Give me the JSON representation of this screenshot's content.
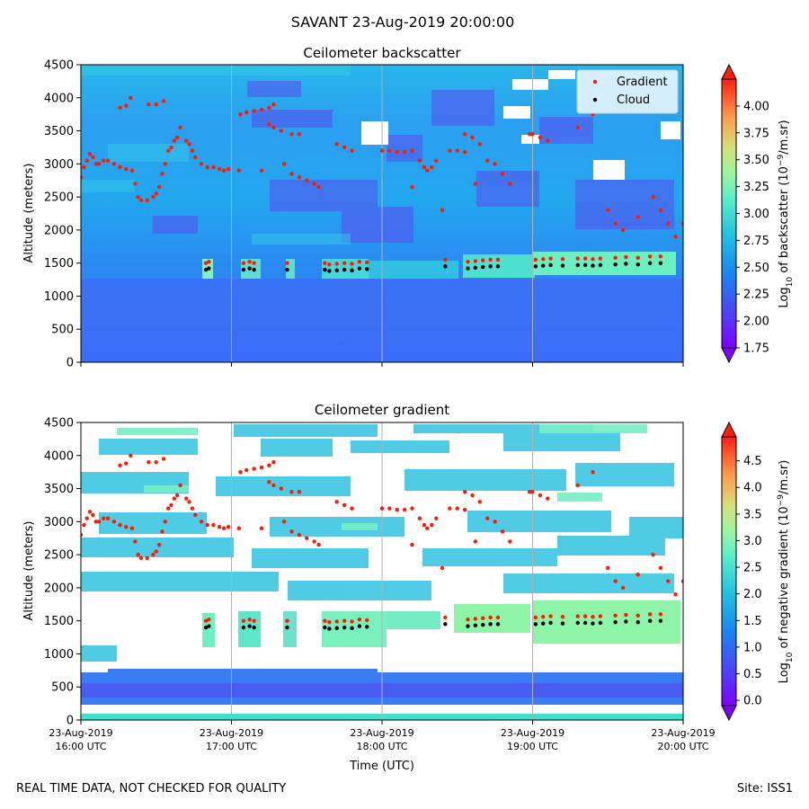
{
  "suptitle": "SAVANT 23-Aug-2019 20:00:00",
  "footer_left": "REAL TIME DATA, NOT CHECKED FOR QUALITY",
  "footer_right": "Site: ISS1",
  "chart_data": [
    {
      "type": "heatmap",
      "title": "Ceilometer backscatter",
      "ylabel": "Altitude (meters)",
      "xlabel": "",
      "ylim": [
        0,
        4500
      ],
      "yticks": [
        0,
        500,
        1000,
        1500,
        2000,
        2500,
        3000,
        3500,
        4000,
        4500
      ],
      "xlim": [
        "2019-08-23 16:00",
        "2019-08-23 20:00"
      ],
      "xticks_hours": [
        16,
        17,
        18,
        19,
        20
      ],
      "colorbar": {
        "label_prefix": "Log",
        "label_sub": "10",
        "label_mid": " of backscatter (10",
        "label_sup": "−9",
        "label_suffix": "/m.sr)",
        "min": 1.75,
        "max": 4.25,
        "ticks": [
          "1.75",
          "2.00",
          "2.25",
          "2.50",
          "2.75",
          "3.00",
          "3.25",
          "3.50",
          "3.75",
          "4.00"
        ]
      },
      "legend": {
        "position": "top-right",
        "entries": [
          "Gradient",
          "Cloud"
        ]
      }
    },
    {
      "type": "heatmap",
      "title": "Ceilometer gradient",
      "ylabel": "Altitude (meters)",
      "xlabel": "Time (UTC)",
      "ylim": [
        0,
        4500
      ],
      "yticks": [
        0,
        500,
        1000,
        1500,
        2000,
        2500,
        3000,
        3500,
        4000,
        4500
      ],
      "xlim": [
        "2019-08-23 16:00",
        "2019-08-23 20:00"
      ],
      "xticks_hours": [
        16,
        17,
        18,
        19,
        20
      ],
      "xtick_labels": [
        [
          "23-Aug-2019",
          "16:00 UTC"
        ],
        [
          "23-Aug-2019",
          "17:00 UTC"
        ],
        [
          "23-Aug-2019",
          "18:00 UTC"
        ],
        [
          "23-Aug-2019",
          "19:00 UTC"
        ],
        [
          "23-Aug-2019",
          "20:00 UTC"
        ]
      ],
      "colorbar": {
        "label_prefix": "Log",
        "label_sub": "10",
        "label_mid": " of negative gradient (10",
        "label_sup": "−9",
        "label_suffix": "/m.sr)",
        "min": -0.1,
        "max": 4.95,
        "ticks": [
          "0.0",
          "0.5",
          "1.0",
          "1.5",
          "2.0",
          "2.5",
          "3.0",
          "3.5",
          "4.0",
          "4.5"
        ]
      }
    }
  ],
  "series_gradient_points": [
    [
      16.0,
      2800
    ],
    [
      16.02,
      2950
    ],
    [
      16.04,
      3050
    ],
    [
      16.06,
      3150
    ],
    [
      16.08,
      3100
    ],
    [
      16.1,
      3000
    ],
    [
      16.12,
      3000
    ],
    [
      16.15,
      3050
    ],
    [
      16.18,
      3050
    ],
    [
      16.22,
      3000
    ],
    [
      16.26,
      2950
    ],
    [
      16.3,
      2920
    ],
    [
      16.34,
      2900
    ],
    [
      16.36,
      2700
    ],
    [
      16.38,
      2500
    ],
    [
      16.4,
      2450
    ],
    [
      16.44,
      2450
    ],
    [
      16.48,
      2500
    ],
    [
      16.5,
      2550
    ],
    [
      16.52,
      2650
    ],
    [
      16.54,
      2850
    ],
    [
      16.56,
      3000
    ],
    [
      16.58,
      3200
    ],
    [
      16.6,
      3250
    ],
    [
      16.62,
      3350
    ],
    [
      16.64,
      3400
    ],
    [
      16.66,
      3550
    ],
    [
      16.7,
      3350
    ],
    [
      16.72,
      3300
    ],
    [
      16.74,
      3200
    ],
    [
      16.76,
      3100
    ],
    [
      16.8,
      3000
    ],
    [
      16.84,
      2950
    ],
    [
      16.88,
      2950
    ],
    [
      16.92,
      2920
    ],
    [
      16.95,
      2900
    ],
    [
      16.26,
      3850
    ],
    [
      16.3,
      3880
    ],
    [
      16.33,
      4000
    ],
    [
      16.45,
      3900
    ],
    [
      16.5,
      3900
    ],
    [
      16.55,
      3950
    ],
    [
      17.06,
      3750
    ],
    [
      17.1,
      3780
    ],
    [
      17.15,
      3800
    ],
    [
      17.2,
      3820
    ],
    [
      17.25,
      3850
    ],
    [
      17.28,
      3900
    ],
    [
      17.25,
      3600
    ],
    [
      17.28,
      3550
    ],
    [
      17.33,
      3500
    ],
    [
      17.4,
      3450
    ],
    [
      17.45,
      3450
    ],
    [
      17.35,
      3000
    ],
    [
      17.4,
      2850
    ],
    [
      17.45,
      2800
    ],
    [
      17.5,
      2750
    ],
    [
      17.55,
      2700
    ],
    [
      17.58,
      2650
    ],
    [
      17.7,
      3300
    ],
    [
      17.75,
      3250
    ],
    [
      17.8,
      3200
    ],
    [
      18.0,
      3200
    ],
    [
      18.05,
      3200
    ],
    [
      18.1,
      3180
    ],
    [
      18.15,
      3180
    ],
    [
      18.2,
      3200
    ],
    [
      18.25,
      3050
    ],
    [
      18.28,
      2950
    ],
    [
      18.3,
      2900
    ],
    [
      18.33,
      2950
    ],
    [
      18.36,
      3050
    ],
    [
      18.45,
      3200
    ],
    [
      18.5,
      3200
    ],
    [
      18.55,
      3180
    ],
    [
      18.55,
      3450
    ],
    [
      18.6,
      3400
    ],
    [
      18.65,
      3300
    ],
    [
      18.7,
      3050
    ],
    [
      18.75,
      3000
    ],
    [
      18.8,
      2850
    ],
    [
      18.85,
      2700
    ],
    [
      18.98,
      3450
    ],
    [
      19.0,
      3450
    ],
    [
      19.05,
      3400
    ],
    [
      19.1,
      3350
    ],
    [
      19.5,
      2300
    ],
    [
      19.55,
      2100
    ],
    [
      19.6,
      2000
    ],
    [
      19.7,
      2200
    ],
    [
      19.8,
      2500
    ],
    [
      19.85,
      2300
    ],
    [
      19.9,
      2100
    ],
    [
      19.95,
      1900
    ],
    [
      20.0,
      2100
    ],
    [
      18.2,
      2650
    ],
    [
      18.4,
      2300
    ],
    [
      18.62,
      2700
    ],
    [
      19.3,
      3550
    ],
    [
      19.4,
      3750
    ],
    [
      17.2,
      2900
    ],
    [
      17.05,
      2900
    ],
    [
      16.98,
      2920
    ]
  ],
  "series_cloud_points": [
    [
      16.83,
      1400
    ],
    [
      16.85,
      1420
    ],
    [
      17.08,
      1400
    ],
    [
      17.12,
      1420
    ],
    [
      17.15,
      1400
    ],
    [
      17.37,
      1400
    ],
    [
      17.62,
      1400
    ],
    [
      17.65,
      1380
    ],
    [
      17.7,
      1390
    ],
    [
      17.75,
      1400
    ],
    [
      17.8,
      1390
    ],
    [
      17.85,
      1420
    ],
    [
      17.9,
      1410
    ],
    [
      18.42,
      1450
    ],
    [
      18.57,
      1420
    ],
    [
      18.62,
      1430
    ],
    [
      18.67,
      1440
    ],
    [
      18.72,
      1450
    ],
    [
      18.77,
      1450
    ],
    [
      19.02,
      1450
    ],
    [
      19.07,
      1460
    ],
    [
      19.12,
      1470
    ],
    [
      19.2,
      1460
    ],
    [
      19.3,
      1470
    ],
    [
      19.35,
      1470
    ],
    [
      19.4,
      1460
    ],
    [
      19.45,
      1470
    ],
    [
      19.55,
      1480
    ],
    [
      19.62,
      1490
    ],
    [
      19.7,
      1480
    ],
    [
      19.78,
      1500
    ],
    [
      19.85,
      1500
    ]
  ]
}
